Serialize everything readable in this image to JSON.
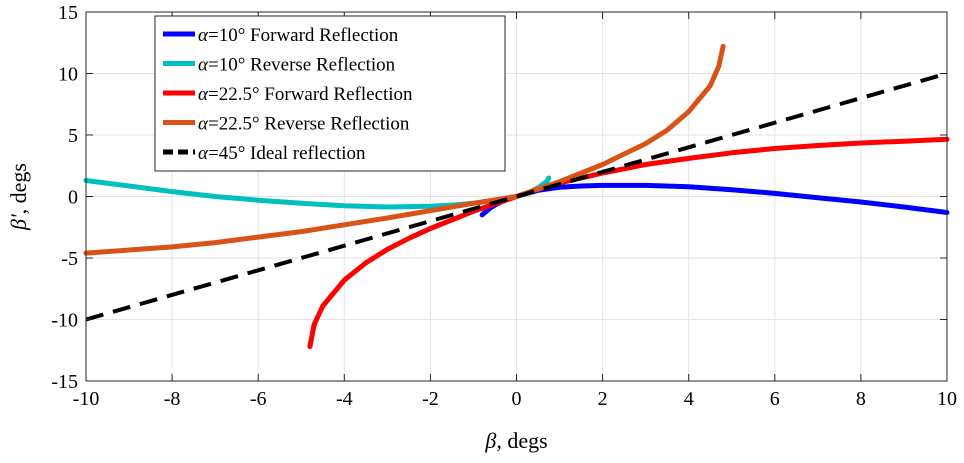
{
  "chart_data": {
    "type": "line",
    "xlabel": "β, degs",
    "ylabel": "β', degs",
    "xlim": [
      -10,
      10
    ],
    "ylim": [
      -15,
      15
    ],
    "xticks": [
      -10,
      -8,
      -6,
      -4,
      -2,
      0,
      2,
      4,
      6,
      8,
      10
    ],
    "yticks": [
      -15,
      -10,
      -5,
      0,
      5,
      10,
      15
    ],
    "xtick_labels": [
      "-10",
      "-8",
      "-6",
      "-4",
      "-2",
      "0",
      "2",
      "4",
      "6",
      "8",
      "10"
    ],
    "ytick_labels": [
      "-15",
      "-10",
      "-5",
      "0",
      "5",
      "10",
      "15"
    ],
    "grid": true,
    "legend_position": "top-left",
    "series": [
      {
        "name": "α=10° Forward Reflection",
        "color": "#0000ff",
        "dash": "solid",
        "x": [
          -0.8,
          -0.6,
          -0.4,
          -0.2,
          0,
          0.5,
          1,
          1.5,
          2,
          3,
          4,
          5,
          6,
          7,
          8,
          9,
          10
        ],
        "y": [
          -1.5,
          -0.9,
          -0.5,
          -0.2,
          0,
          0.5,
          0.75,
          0.85,
          0.9,
          0.9,
          0.8,
          0.55,
          0.25,
          -0.1,
          -0.45,
          -0.85,
          -1.3
        ]
      },
      {
        "name": "α=10° Reverse Reflection",
        "color": "#00bfbf",
        "dash": "solid",
        "x": [
          -10,
          -9,
          -8,
          -7,
          -6,
          -5,
          -4,
          -3,
          -2,
          -1.5,
          -1,
          -0.5,
          0,
          0.3,
          0.5,
          0.7,
          0.75
        ],
        "y": [
          1.3,
          0.85,
          0.4,
          0.0,
          -0.3,
          -0.55,
          -0.75,
          -0.85,
          -0.8,
          -0.7,
          -0.55,
          -0.3,
          0,
          0.35,
          0.7,
          1.2,
          1.5
        ]
      },
      {
        "name": "α=22.5° Forward Reflection",
        "color": "#ff0000",
        "dash": "solid",
        "x": [
          -4.8,
          -4.7,
          -4.5,
          -4.0,
          -3.5,
          -3.0,
          -2.5,
          -2.0,
          -1.5,
          -1.0,
          -0.5,
          0,
          0.5,
          1,
          2,
          3,
          4,
          5,
          6,
          7,
          8,
          9,
          10
        ],
        "y": [
          -12.2,
          -10.4,
          -8.9,
          -6.8,
          -5.4,
          -4.3,
          -3.4,
          -2.6,
          -1.9,
          -1.2,
          -0.6,
          0,
          0.6,
          1.1,
          1.9,
          2.6,
          3.1,
          3.55,
          3.9,
          4.15,
          4.35,
          4.5,
          4.65
        ]
      },
      {
        "name": "α=22.5° Reverse Reflection",
        "color": "#d95319",
        "dash": "solid",
        "x": [
          -10,
          -9,
          -8,
          -7,
          -6,
          -5,
          -4,
          -3,
          -2,
          -1,
          0,
          1,
          2,
          3,
          3.5,
          4,
          4.5,
          4.7,
          4.8
        ],
        "y": [
          -4.6,
          -4.35,
          -4.1,
          -3.75,
          -3.3,
          -2.85,
          -2.3,
          -1.75,
          -1.15,
          -0.55,
          0,
          1.2,
          2.6,
          4.3,
          5.4,
          6.9,
          9.0,
          10.6,
          12.2
        ]
      },
      {
        "name": "α=45° Ideal reflection",
        "color": "#000000",
        "dash": "dashed",
        "x": [
          -10,
          10
        ],
        "y": [
          -10,
          10
        ]
      }
    ]
  }
}
